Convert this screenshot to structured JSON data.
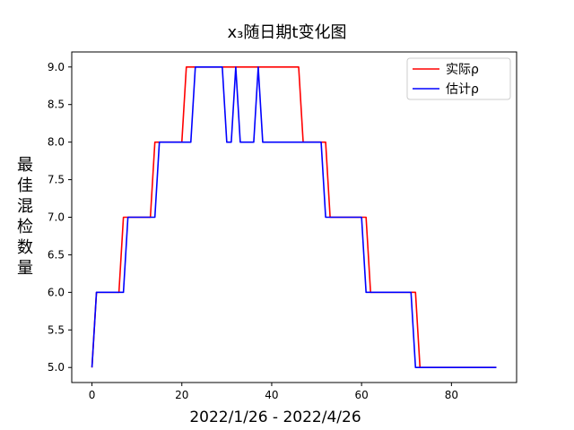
{
  "chart_data": {
    "type": "line",
    "title": "x₃随日期t变化图",
    "xlabel": "2022/1/26 - 2022/4/26",
    "ylabel": "最佳混检数量",
    "xlim": [
      -4.5,
      94.5
    ],
    "ylim": [
      4.8,
      9.2
    ],
    "xticks": [
      0,
      20,
      40,
      60,
      80
    ],
    "yticks": [
      5.0,
      5.5,
      6.0,
      6.5,
      7.0,
      7.5,
      8.0,
      8.5,
      9.0
    ],
    "ytick_labels": [
      "5.0",
      "5.5",
      "6.0",
      "6.5",
      "7.0",
      "7.5",
      "8.0",
      "8.5",
      "9.0"
    ],
    "grid": false,
    "legend_position": "top-right",
    "series": [
      {
        "name": "实际ρ",
        "color": "#ff0000",
        "x": [
          0,
          1,
          6,
          7,
          13,
          14,
          20,
          21,
          46,
          47,
          51,
          52,
          53,
          61,
          62,
          72,
          73,
          90
        ],
        "y": [
          5,
          6,
          6,
          7,
          7,
          8,
          8,
          9,
          9,
          8,
          8,
          8,
          7,
          7,
          6,
          6,
          5,
          5
        ]
      },
      {
        "name": "估计ρ",
        "color": "#0000ff",
        "x": [
          0,
          1,
          7,
          8,
          14,
          15,
          22,
          23,
          29,
          30,
          31,
          32,
          33,
          36,
          37,
          38,
          51,
          52,
          60,
          61,
          71,
          72,
          90
        ],
        "y": [
          5,
          6,
          6,
          7,
          7,
          8,
          8,
          9,
          9,
          8,
          8,
          9,
          8,
          8,
          9,
          8,
          8,
          7,
          7,
          6,
          6,
          5,
          5
        ]
      }
    ]
  }
}
